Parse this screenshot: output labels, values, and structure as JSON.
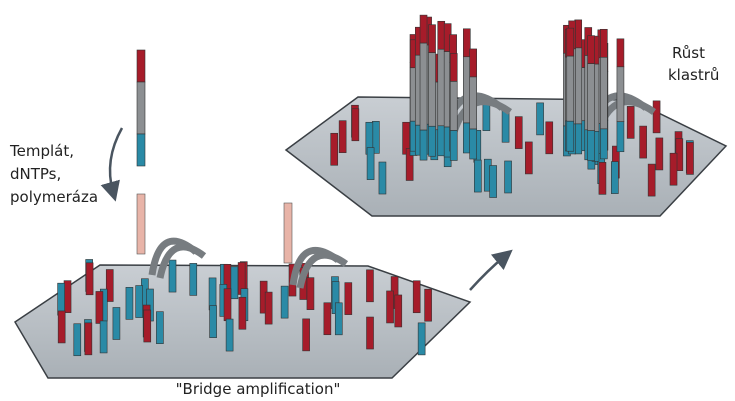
{
  "labels": {
    "reagents": [
      "Templát,",
      "dNTPs,",
      "polymeráza"
    ],
    "cluster_growth": [
      "Růst",
      "klastrů"
    ],
    "caption": "\"Bridge amplification\""
  }
}
